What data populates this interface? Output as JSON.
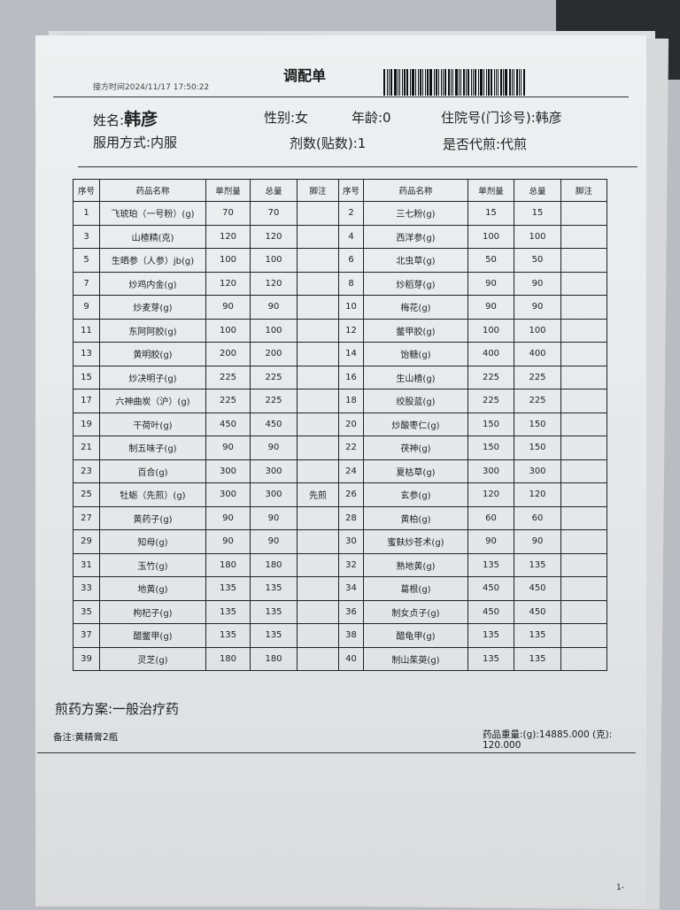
{
  "document": {
    "title": "调配单",
    "prescription_time": "接方时间2024/11/17 17:50:22",
    "patient": {
      "name_label": "姓名:",
      "name": "韩彦",
      "gender": "性别:女",
      "age": "年龄:0",
      "hospital_no": "住院号(门诊号):韩彦",
      "usage": "服用方式:内服",
      "doses": "剂数(贴数):1",
      "decoction": "是否代煎:代煎"
    },
    "table": {
      "headers": [
        "序号",
        "药品名称",
        "单剂量",
        "总量",
        "脚注",
        "序号",
        "药品名称",
        "单剂量",
        "总量",
        "脚注"
      ],
      "rows": [
        [
          "1",
          "飞琥珀（一号粉）(g)",
          "70",
          "70",
          "",
          "2",
          "三七粉(g)",
          "15",
          "15",
          ""
        ],
        [
          "3",
          "山楂精(克)",
          "120",
          "120",
          "",
          "4",
          "西洋参(g)",
          "100",
          "100",
          ""
        ],
        [
          "5",
          "生晒参（人参）jb(g)",
          "100",
          "100",
          "",
          "6",
          "北虫草(g)",
          "50",
          "50",
          ""
        ],
        [
          "7",
          "炒鸡内金(g)",
          "120",
          "120",
          "",
          "8",
          "炒稻芽(g)",
          "90",
          "90",
          ""
        ],
        [
          "9",
          "炒麦芽(g)",
          "90",
          "90",
          "",
          "10",
          "梅花(g)",
          "90",
          "90",
          ""
        ],
        [
          "11",
          "东阿阿胶(g)",
          "100",
          "100",
          "",
          "12",
          "鳖甲胶(g)",
          "100",
          "100",
          ""
        ],
        [
          "13",
          "黄明胶(g)",
          "200",
          "200",
          "",
          "14",
          "饴糖(g)",
          "400",
          "400",
          ""
        ],
        [
          "15",
          "炒决明子(g)",
          "225",
          "225",
          "",
          "16",
          "生山楂(g)",
          "225",
          "225",
          ""
        ],
        [
          "17",
          "六神曲炭（沪）(g)",
          "225",
          "225",
          "",
          "18",
          "绞股蓝(g)",
          "225",
          "225",
          ""
        ],
        [
          "19",
          "干荷叶(g)",
          "450",
          "450",
          "",
          "20",
          "炒酸枣仁(g)",
          "150",
          "150",
          ""
        ],
        [
          "21",
          "制五味子(g)",
          "90",
          "90",
          "",
          "22",
          "茯神(g)",
          "150",
          "150",
          ""
        ],
        [
          "23",
          "百合(g)",
          "300",
          "300",
          "",
          "24",
          "夏枯草(g)",
          "300",
          "300",
          ""
        ],
        [
          "25",
          "牡蛎（先煎）(g)",
          "300",
          "300",
          "先煎",
          "26",
          "玄参(g)",
          "120",
          "120",
          ""
        ],
        [
          "27",
          "黄药子(g)",
          "90",
          "90",
          "",
          "28",
          "黄柏(g)",
          "60",
          "60",
          ""
        ],
        [
          "29",
          "知母(g)",
          "90",
          "90",
          "",
          "30",
          "蜜麸炒苍术(g)",
          "90",
          "90",
          ""
        ],
        [
          "31",
          "玉竹(g)",
          "180",
          "180",
          "",
          "32",
          "熟地黄(g)",
          "135",
          "135",
          ""
        ],
        [
          "33",
          "地黄(g)",
          "135",
          "135",
          "",
          "34",
          "葛根(g)",
          "450",
          "450",
          ""
        ],
        [
          "35",
          "枸杞子(g)",
          "135",
          "135",
          "",
          "36",
          "制女贞子(g)",
          "450",
          "450",
          ""
        ],
        [
          "37",
          "醋鳖甲(g)",
          "135",
          "135",
          "",
          "38",
          "醋龟甲(g)",
          "135",
          "135",
          ""
        ],
        [
          "39",
          "灵芝(g)",
          "180",
          "180",
          "",
          "40",
          "制山茱萸(g)",
          "135",
          "135",
          ""
        ]
      ]
    },
    "decoction_plan": "煎药方案:一般治疗药",
    "remark": "备注:黄精膏2瓶",
    "total_weight": "药品重量:(g):14885.000 (克): 120.000",
    "page_mark": "1-"
  }
}
